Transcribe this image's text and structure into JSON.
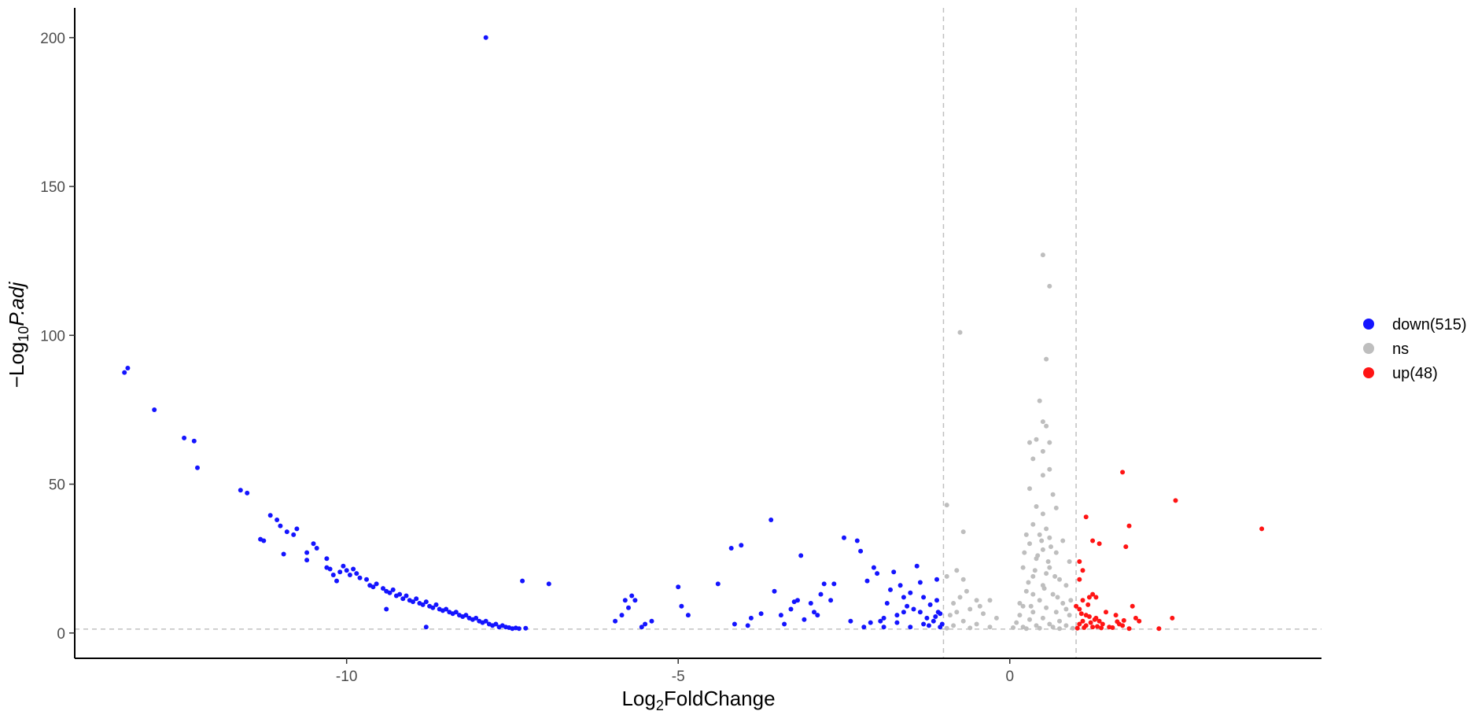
{
  "chart_data": {
    "type": "scatter",
    "title": "",
    "xlabel": {
      "prefix": "Log",
      "sub": "2",
      "suffix": "FoldChange"
    },
    "ylabel": {
      "prefix": "−Log",
      "sub": "10",
      "italic": "P.adj"
    },
    "xlim": [
      -14.1,
      4.7
    ],
    "ylim": [
      -8.5,
      210
    ],
    "xticks": [
      -10,
      -5,
      0
    ],
    "xtick_labels": [
      "-10",
      "-5",
      "0"
    ],
    "yticks": [
      0,
      50,
      100,
      150,
      200
    ],
    "ytick_labels": [
      "0",
      "50",
      "100",
      "150",
      "200"
    ],
    "grid": false,
    "legend_position": "right",
    "reference_lines": {
      "vertical": [
        -1,
        1
      ],
      "horizontal": [
        1.3
      ],
      "color": "#c0c0c0",
      "style": "dashed"
    },
    "series": [
      {
        "name": "down(515)",
        "color": "#1414ff",
        "points": [
          [
            -13.3,
            89
          ],
          [
            -13.35,
            87.5
          ],
          [
            -12.9,
            75
          ],
          [
            -12.45,
            65.5
          ],
          [
            -12.3,
            64.5
          ],
          [
            -12.25,
            55.5
          ],
          [
            -11.6,
            48
          ],
          [
            -11.5,
            47
          ],
          [
            -11.3,
            31.5
          ],
          [
            -11.25,
            31
          ],
          [
            -11.15,
            39.5
          ],
          [
            -11.05,
            38
          ],
          [
            -11.0,
            36
          ],
          [
            -10.95,
            26.5
          ],
          [
            -10.9,
            34
          ],
          [
            -10.8,
            33
          ],
          [
            -10.75,
            35
          ],
          [
            -10.6,
            27
          ],
          [
            -10.6,
            24.5
          ],
          [
            -10.5,
            30
          ],
          [
            -10.45,
            28.5
          ],
          [
            -10.3,
            25
          ],
          [
            -10.3,
            22
          ],
          [
            -10.25,
            21.5
          ],
          [
            -10.2,
            19.5
          ],
          [
            -10.15,
            17.5
          ],
          [
            -10.1,
            20.5
          ],
          [
            -10.05,
            22.5
          ],
          [
            -10.0,
            21
          ],
          [
            -9.95,
            19.5
          ],
          [
            -9.9,
            21.5
          ],
          [
            -9.85,
            20
          ],
          [
            -9.8,
            18.5
          ],
          [
            -9.7,
            18
          ],
          [
            -9.65,
            16
          ],
          [
            -9.6,
            15.5
          ],
          [
            -9.55,
            16.5
          ],
          [
            -9.45,
            15
          ],
          [
            -9.4,
            14
          ],
          [
            -9.35,
            13.5
          ],
          [
            -9.3,
            14.5
          ],
          [
            -9.25,
            12.5
          ],
          [
            -9.2,
            13
          ],
          [
            -9.15,
            11.5
          ],
          [
            -9.1,
            12.5
          ],
          [
            -9.05,
            11
          ],
          [
            -9.0,
            10.5
          ],
          [
            -8.95,
            11.5
          ],
          [
            -8.9,
            10
          ],
          [
            -8.85,
            9.5
          ],
          [
            -8.8,
            10.5
          ],
          [
            -8.75,
            9
          ],
          [
            -8.7,
            8.5
          ],
          [
            -8.65,
            9.5
          ],
          [
            -8.6,
            8
          ],
          [
            -8.55,
            7.5
          ],
          [
            -8.5,
            8
          ],
          [
            -8.45,
            7
          ],
          [
            -8.4,
            6.5
          ],
          [
            -8.35,
            7
          ],
          [
            -8.3,
            6
          ],
          [
            -8.25,
            5.5
          ],
          [
            -8.2,
            6
          ],
          [
            -8.15,
            5
          ],
          [
            -8.1,
            4.5
          ],
          [
            -8.05,
            5
          ],
          [
            -8.0,
            4
          ],
          [
            -7.95,
            3.5
          ],
          [
            -7.9,
            4
          ],
          [
            -7.85,
            3
          ],
          [
            -7.8,
            2.5
          ],
          [
            -7.75,
            3
          ],
          [
            -7.7,
            2
          ],
          [
            -7.65,
            2.5
          ],
          [
            -7.6,
            2
          ],
          [
            -7.55,
            1.8
          ],
          [
            -7.5,
            1.5
          ],
          [
            -7.45,
            1.7
          ],
          [
            -7.4,
            1.5
          ],
          [
            -7.3,
            1.6
          ],
          [
            -8.8,
            2
          ],
          [
            -9.4,
            8
          ],
          [
            -7.9,
            200
          ],
          [
            -7.35,
            17.5
          ],
          [
            -6.95,
            16.5
          ],
          [
            -5.95,
            4
          ],
          [
            -5.85,
            6
          ],
          [
            -5.8,
            11
          ],
          [
            -5.75,
            8.5
          ],
          [
            -5.7,
            12.5
          ],
          [
            -5.65,
            11
          ],
          [
            -5.55,
            2
          ],
          [
            -5.5,
            3
          ],
          [
            -5.4,
            4
          ],
          [
            -5.0,
            15.5
          ],
          [
            -4.95,
            9
          ],
          [
            -4.85,
            6
          ],
          [
            -4.4,
            16.5
          ],
          [
            -4.2,
            28.5
          ],
          [
            -4.15,
            3
          ],
          [
            -4.05,
            29.5
          ],
          [
            -3.95,
            2.5
          ],
          [
            -3.9,
            5
          ],
          [
            -3.75,
            6.5
          ],
          [
            -3.6,
            38
          ],
          [
            -3.55,
            14
          ],
          [
            -3.45,
            6
          ],
          [
            -3.4,
            3
          ],
          [
            -3.3,
            8
          ],
          [
            -3.25,
            10.5
          ],
          [
            -3.2,
            11
          ],
          [
            -3.15,
            26
          ],
          [
            -3.1,
            4.5
          ],
          [
            -3.0,
            10
          ],
          [
            -2.95,
            7
          ],
          [
            -2.9,
            6
          ],
          [
            -2.85,
            13
          ],
          [
            -2.8,
            16.5
          ],
          [
            -2.7,
            11
          ],
          [
            -2.65,
            16.5
          ],
          [
            -2.5,
            32
          ],
          [
            -2.4,
            4
          ],
          [
            -2.3,
            31
          ],
          [
            -2.25,
            27.5
          ],
          [
            -2.2,
            2
          ],
          [
            -2.15,
            17.5
          ],
          [
            -2.05,
            22
          ],
          [
            -2.0,
            20
          ],
          [
            -1.95,
            4
          ],
          [
            -1.9,
            2
          ],
          [
            -1.85,
            10
          ],
          [
            -1.8,
            14.5
          ],
          [
            -1.75,
            20.5
          ],
          [
            -1.7,
            6
          ],
          [
            -1.65,
            16
          ],
          [
            -1.6,
            12
          ],
          [
            -1.55,
            9
          ],
          [
            -1.5,
            13.5
          ],
          [
            -1.45,
            8
          ],
          [
            -1.4,
            22.5
          ],
          [
            -1.35,
            17
          ],
          [
            -1.3,
            12
          ],
          [
            -1.25,
            5
          ],
          [
            -1.2,
            9.5
          ],
          [
            -1.15,
            4
          ],
          [
            -1.1,
            18
          ],
          [
            -1.08,
            7
          ],
          [
            -1.05,
            6.5
          ],
          [
            -1.02,
            3
          ],
          [
            -1.1,
            11
          ],
          [
            -1.3,
            3
          ],
          [
            -1.5,
            2
          ],
          [
            -1.7,
            3.5
          ],
          [
            -1.05,
            2
          ],
          [
            -1.12,
            5.5
          ],
          [
            -1.22,
            2.5
          ],
          [
            -1.35,
            7
          ],
          [
            -1.6,
            7
          ],
          [
            -1.9,
            5
          ],
          [
            -2.1,
            3.5
          ]
        ]
      },
      {
        "name": "ns",
        "color": "#bebebe",
        "points": [
          [
            0.5,
            127
          ],
          [
            0.6,
            116.5
          ],
          [
            0.55,
            92
          ],
          [
            -0.75,
            101
          ],
          [
            0.45,
            78
          ],
          [
            0.5,
            71
          ],
          [
            0.55,
            69.5
          ],
          [
            0.4,
            65
          ],
          [
            0.3,
            64
          ],
          [
            0.6,
            64
          ],
          [
            0.5,
            61
          ],
          [
            0.35,
            58.5
          ],
          [
            0.6,
            55
          ],
          [
            0.5,
            53
          ],
          [
            0.3,
            48.5
          ],
          [
            0.65,
            46.5
          ],
          [
            0.4,
            42.5
          ],
          [
            0.5,
            40
          ],
          [
            0.7,
            42
          ],
          [
            0.35,
            36.5
          ],
          [
            0.55,
            35
          ],
          [
            -0.95,
            43
          ],
          [
            -0.7,
            34
          ],
          [
            0.25,
            33
          ],
          [
            0.45,
            33
          ],
          [
            0.6,
            32
          ],
          [
            0.8,
            31
          ],
          [
            0.3,
            30
          ],
          [
            0.5,
            28
          ],
          [
            0.7,
            27
          ],
          [
            0.4,
            25
          ],
          [
            0.9,
            24
          ],
          [
            0.2,
            22
          ],
          [
            0.6,
            22
          ],
          [
            -0.8,
            21
          ],
          [
            -0.95,
            19
          ],
          [
            0.35,
            19
          ],
          [
            0.75,
            18
          ],
          [
            -0.7,
            18
          ],
          [
            0.5,
            16
          ],
          [
            0.85,
            16
          ],
          [
            0.25,
            14
          ],
          [
            0.65,
            13
          ],
          [
            -0.5,
            11
          ],
          [
            -0.3,
            11
          ],
          [
            0.45,
            11
          ],
          [
            0.8,
            10
          ],
          [
            -0.85,
            10
          ],
          [
            0.2,
            9
          ],
          [
            0.55,
            8.5
          ],
          [
            -0.6,
            8
          ],
          [
            0.35,
            7
          ],
          [
            0.7,
            7
          ],
          [
            -0.4,
            6.5
          ],
          [
            0.15,
            6
          ],
          [
            0.9,
            6
          ],
          [
            -0.9,
            6
          ],
          [
            0.5,
            5
          ],
          [
            -0.2,
            5
          ],
          [
            0.3,
            4.5
          ],
          [
            0.75,
            4
          ],
          [
            -0.7,
            4
          ],
          [
            0.1,
            3.5
          ],
          [
            0.6,
            3
          ],
          [
            -0.5,
            3
          ],
          [
            0.4,
            2.5
          ],
          [
            0.85,
            2.5
          ],
          [
            -0.85,
            2.5
          ],
          [
            0.2,
            2
          ],
          [
            0.65,
            2
          ],
          [
            -0.3,
            2
          ],
          [
            0.05,
            1.8
          ],
          [
            0.45,
            1.6
          ],
          [
            0.95,
            1.6
          ],
          [
            -0.6,
            1.7
          ],
          [
            0.25,
            1.5
          ],
          [
            0.75,
            1.5
          ],
          [
            -0.95,
            1.6
          ],
          [
            0.35,
            13
          ],
          [
            0.55,
            20
          ],
          [
            0.42,
            26
          ],
          [
            0.62,
            29
          ],
          [
            0.28,
            17
          ],
          [
            0.72,
            12
          ],
          [
            -0.65,
            14
          ],
          [
            -0.45,
            9
          ],
          [
            0.15,
            10
          ],
          [
            0.85,
            8
          ],
          [
            0.58,
            24
          ],
          [
            0.38,
            21
          ],
          [
            0.48,
            31
          ],
          [
            0.68,
            19
          ],
          [
            -0.8,
            7
          ],
          [
            -0.75,
            12
          ],
          [
            0.22,
            27
          ],
          [
            0.52,
            15
          ],
          [
            0.32,
            9
          ],
          [
            0.92,
            11
          ]
        ]
      },
      {
        "name": "up(48)",
        "color": "#ff1414",
        "points": [
          [
            1.15,
            39
          ],
          [
            1.35,
            30
          ],
          [
            1.25,
            31
          ],
          [
            1.7,
            54
          ],
          [
            1.75,
            29
          ],
          [
            1.8,
            36
          ],
          [
            2.5,
            44.5
          ],
          [
            3.8,
            35
          ],
          [
            1.05,
            24
          ],
          [
            1.1,
            21
          ],
          [
            1.05,
            18
          ],
          [
            1.2,
            12
          ],
          [
            1.3,
            12
          ],
          [
            1.1,
            11
          ],
          [
            1.25,
            13
          ],
          [
            1.0,
            9
          ],
          [
            1.05,
            8
          ],
          [
            1.15,
            6
          ],
          [
            1.2,
            5.5
          ],
          [
            1.3,
            5
          ],
          [
            1.35,
            4
          ],
          [
            1.1,
            4
          ],
          [
            1.05,
            3
          ],
          [
            1.15,
            2.5
          ],
          [
            1.25,
            2
          ],
          [
            1.4,
            3
          ],
          [
            1.5,
            2
          ],
          [
            1.45,
            7
          ],
          [
            1.6,
            6
          ],
          [
            1.65,
            3
          ],
          [
            1.55,
            1.8
          ],
          [
            1.7,
            2.5
          ],
          [
            1.8,
            1.5
          ],
          [
            1.85,
            9
          ],
          [
            1.9,
            5
          ],
          [
            1.95,
            4
          ],
          [
            2.25,
            1.5
          ],
          [
            2.45,
            5
          ],
          [
            1.02,
            1.6
          ],
          [
            1.12,
            1.8
          ],
          [
            1.22,
            3.5
          ],
          [
            1.32,
            2.2
          ],
          [
            1.08,
            6.5
          ],
          [
            1.18,
            9.5
          ],
          [
            1.28,
            4.5
          ],
          [
            1.38,
            1.7
          ],
          [
            1.62,
            3.8
          ],
          [
            1.72,
            4.2
          ]
        ]
      }
    ]
  }
}
